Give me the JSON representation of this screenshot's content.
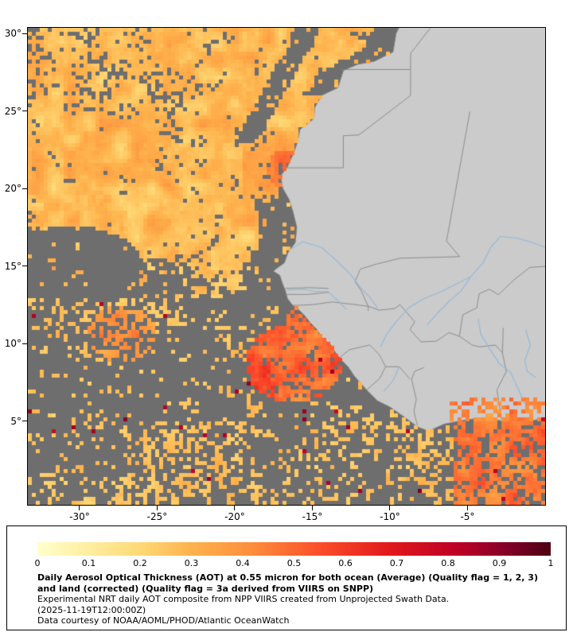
{
  "map": {
    "y_tick_labels": [
      "30°",
      "25°",
      "20°",
      "15°",
      "10°",
      "5°"
    ],
    "x_tick_labels": [
      "-30°",
      "-25°",
      "-20°",
      "-15°",
      "-10°",
      "-5°"
    ]
  },
  "legend": {
    "tick_labels": [
      "0",
      "0.1",
      "0.2",
      "0.3",
      "0.4",
      "0.5",
      "0.6",
      "0.7",
      "0.8",
      "0.9",
      "1"
    ],
    "title": "Daily Aerosol Optical Thickness (AOT) at 0.55 micron for both ocean (Average) (Quality flag = 1, 2, 3) and land (corrected) (Quality flag = 3a derived from VIIRS on SNPP)",
    "subtitle": "Experimental NRT daily AOT composite from NPP VIIRS created from Unprojected Swath Data.",
    "timestamp": "(2025-11-19T12:00:00Z)",
    "credit": "Data courtesy of NOAA/AOML/PHOD/Atlantic OceanWatch"
  },
  "colors": {
    "no_data_ocean": "#6e6e6e",
    "land": "#cbcbcb",
    "country_border": "#858585",
    "river": "#90b8dc",
    "map_border": "#000000",
    "text": "#000000",
    "colormap": [
      {
        "v": 0.0,
        "c": "#ffffcc"
      },
      {
        "v": 0.1,
        "c": "#ffeda0"
      },
      {
        "v": 0.2,
        "c": "#fed976"
      },
      {
        "v": 0.3,
        "c": "#feb24c"
      },
      {
        "v": 0.42,
        "c": "#fd8d3c"
      },
      {
        "v": 0.55,
        "c": "#fc4e2a"
      },
      {
        "v": 0.68,
        "c": "#e31a1c"
      },
      {
        "v": 0.82,
        "c": "#bd0026"
      },
      {
        "v": 0.92,
        "c": "#800026"
      },
      {
        "v": 1.0,
        "c": "#4d0012"
      }
    ]
  },
  "chart_data": {
    "type": "heatmap",
    "title": "Daily Aerosol Optical Thickness (AOT) at 0.55 micron for both ocean (Average) and land (corrected)",
    "x_axis": {
      "label": "",
      "tick_values": [
        -30,
        -25,
        -20,
        -15,
        -10,
        -5
      ],
      "range": [
        -33.3,
        0.0
      ]
    },
    "y_axis": {
      "label": "",
      "tick_values": [
        30,
        25,
        20,
        15,
        10,
        5
      ],
      "range": [
        -0.4,
        30.4
      ]
    },
    "colorbar": {
      "range": [
        0,
        1
      ],
      "tick_values": [
        0,
        0.1,
        0.2,
        0.3,
        0.4,
        0.5,
        0.6,
        0.7,
        0.8,
        0.9,
        1
      ],
      "position": "bottom"
    },
    "grid": false,
    "notes": "Blocky satellite AOT field (cream 0.1 to orange/red 0.5+) over the Atlantic off West Africa; medium gray = no data ocean; light gray = land with country borders and rivers"
  }
}
